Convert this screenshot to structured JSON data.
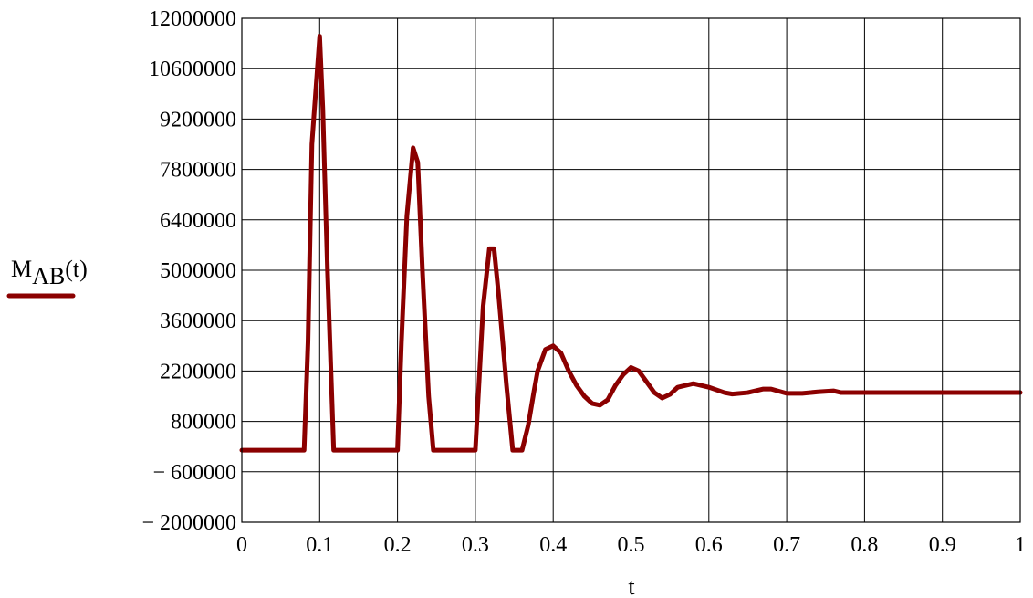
{
  "chart_data": {
    "type": "line",
    "title": "",
    "xlabel": "t",
    "ylabel": {
      "main": "M",
      "subscript": "AB",
      "suffix": "(t)"
    },
    "xlim": [
      0,
      1
    ],
    "ylim": [
      -2000000,
      12000000
    ],
    "x_ticks": [
      0,
      0.1,
      0.2,
      0.3,
      0.4,
      0.5,
      0.6,
      0.7,
      0.8,
      0.9,
      1
    ],
    "x_tick_labels": [
      "0",
      "0.1",
      "0.2",
      "0.3",
      "0.4",
      "0.5",
      "0.6",
      "0.7",
      "0.8",
      "0.9",
      "1"
    ],
    "y_ticks": [
      -2000000,
      -600000,
      800000,
      2200000,
      3600000,
      5000000,
      6400000,
      7800000,
      9200000,
      10600000,
      12000000
    ],
    "y_tick_labels": [
      "− 2000000",
      "− 600000",
      "800000",
      "2200000",
      "3600000",
      "5000000",
      "6400000",
      "7800000",
      "9200000",
      "10600000",
      "12000000"
    ],
    "grid": true,
    "legend": "left, line sample under y-label",
    "series": [
      {
        "color": "#8b0000",
        "x": [
          0,
          0.08,
          0.085,
          0.09,
          0.1,
          0.104,
          0.11,
          0.118,
          0.2,
          0.205,
          0.212,
          0.22,
          0.226,
          0.232,
          0.24,
          0.246,
          0.3,
          0.305,
          0.31,
          0.318,
          0.324,
          0.33,
          0.34,
          0.348,
          0.352,
          0.36,
          0.368,
          0.375,
          0.38,
          0.39,
          0.4,
          0.41,
          0.42,
          0.43,
          0.44,
          0.45,
          0.46,
          0.47,
          0.48,
          0.49,
          0.5,
          0.51,
          0.52,
          0.53,
          0.54,
          0.55,
          0.56,
          0.57,
          0.58,
          0.6,
          0.62,
          0.63,
          0.65,
          0.67,
          0.68,
          0.7,
          0.72,
          0.74,
          0.76,
          0.77,
          0.8,
          0.9,
          1.0
        ],
        "y": [
          0,
          0,
          3000000,
          8500000,
          11500000,
          9500000,
          5000000,
          0,
          0,
          3000000,
          6500000,
          8400000,
          8000000,
          5000000,
          1500000,
          0,
          0,
          2000000,
          4000000,
          5600000,
          5600000,
          4300000,
          1800000,
          0,
          0,
          0,
          700000,
          1600000,
          2200000,
          2800000,
          2900000,
          2700000,
          2200000,
          1800000,
          1500000,
          1300000,
          1250000,
          1400000,
          1800000,
          2100000,
          2300000,
          2200000,
          1900000,
          1600000,
          1450000,
          1550000,
          1750000,
          1800000,
          1850000,
          1750000,
          1600000,
          1560000,
          1600000,
          1700000,
          1700000,
          1580000,
          1580000,
          1620000,
          1650000,
          1600000,
          1600000,
          1600000,
          1600000
        ]
      }
    ]
  }
}
